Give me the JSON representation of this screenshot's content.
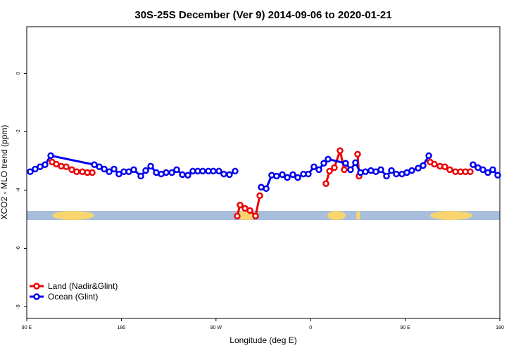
{
  "chart_data": {
    "type": "line",
    "title": "30S-25S December (Ver 9)   2014-09-06 to 2020-01-21",
    "xlabel": "Longitude (deg E)",
    "ylabel": "XCO2 - MLO trend (ppm)",
    "xlim": [
      90,
      540
    ],
    "xticks": [
      {
        "value": 90,
        "label": "90 E"
      },
      {
        "value": 180,
        "label": "180"
      },
      {
        "value": 270,
        "label": "90 W"
      },
      {
        "value": 360,
        "label": "0"
      },
      {
        "value": 450,
        "label": "90 E"
      },
      {
        "value": 540,
        "label": "180"
      }
    ],
    "ylim": [
      -8.4,
      1.6
    ],
    "yticks": [
      0,
      -2,
      -4,
      -6,
      -8
    ],
    "legend": "bottom-left",
    "series": [
      {
        "name": "Land (Nadir&Glint)",
        "color": "#ee0000",
        "x": [
          114.1,
          118.1,
          122.8,
          127.5,
          132.9,
          137.5,
          142.9,
          147.6,
          152.3,
          200,
          290.2,
          292.9,
          297.6,
          302.3,
          307.6,
          311.7,
          340,
          374.6,
          378.0,
          382.6,
          388.0,
          392.0,
          398,
          404.7,
          406.1,
          440,
          473.7,
          477.7,
          483.1,
          487.7,
          492.4,
          497.8,
          502.5,
          507.2,
          511.8
        ],
        "values": [
          -3.04,
          -3.11,
          -3.18,
          -3.2,
          -3.3,
          -3.37,
          -3.37,
          -3.4,
          -3.4,
          null,
          -4.89,
          -4.51,
          -4.63,
          -4.7,
          -4.89,
          -4.19,
          null,
          -3.78,
          -3.35,
          -3.23,
          -2.65,
          -3.3,
          null,
          -2.77,
          -3.52,
          null,
          -3.04,
          -3.11,
          -3.18,
          -3.2,
          -3.3,
          -3.37,
          -3.37,
          -3.37,
          -3.37
        ]
      },
      {
        "name": "Ocean (Glint)",
        "color": "#0000ee",
        "x": [
          93.3,
          98.0,
          102.7,
          107.4,
          112.8,
          154.3,
          159.0,
          163.7,
          168.4,
          173.0,
          177.7,
          182.4,
          187.1,
          191.8,
          198.5,
          203.2,
          207.9,
          213.2,
          217.9,
          222.6,
          228.0,
          232.6,
          238.0,
          243.3,
          248.0,
          252.7,
          257.4,
          262.8,
          267.4,
          272.8,
          277.5,
          282.8,
          288.2,
          300,
          313.0,
          317.7,
          323.0,
          327.7,
          333.1,
          337.8,
          343.1,
          347.8,
          353.2,
          357.8,
          363.2,
          367.9,
          372.6,
          376.6,
          393.3,
          398.0,
          402.7,
          407.4,
          412.1,
          417.4,
          422.1,
          426.8,
          432.2,
          436.9,
          441.5,
          446.9,
          451.6,
          456.3,
          462.3,
          467.0,
          472.4,
          495,
          514.5,
          519.2,
          523.9,
          528.6,
          533.3,
          538.0
        ],
        "values": [
          -3.37,
          -3.28,
          -3.2,
          -3.13,
          -2.82,
          -3.13,
          -3.2,
          -3.28,
          -3.37,
          -3.28,
          -3.45,
          -3.37,
          -3.37,
          -3.3,
          -3.52,
          -3.33,
          -3.18,
          -3.4,
          -3.45,
          -3.4,
          -3.4,
          -3.3,
          -3.47,
          -3.49,
          -3.35,
          -3.35,
          -3.35,
          -3.35,
          -3.35,
          -3.35,
          -3.45,
          -3.47,
          -3.35,
          null,
          -3.9,
          -3.95,
          -3.49,
          -3.52,
          -3.47,
          -3.57,
          -3.47,
          -3.57,
          -3.45,
          -3.45,
          -3.2,
          -3.3,
          -3.08,
          -2.94,
          -3.08,
          -3.3,
          -3.06,
          -3.4,
          -3.37,
          -3.33,
          -3.37,
          -3.3,
          -3.52,
          -3.33,
          -3.45,
          -3.45,
          -3.4,
          -3.33,
          -3.25,
          -3.16,
          -2.82,
          null,
          -3.13,
          -3.23,
          -3.3,
          -3.4,
          -3.3,
          -3.49
        ]
      }
    ]
  }
}
